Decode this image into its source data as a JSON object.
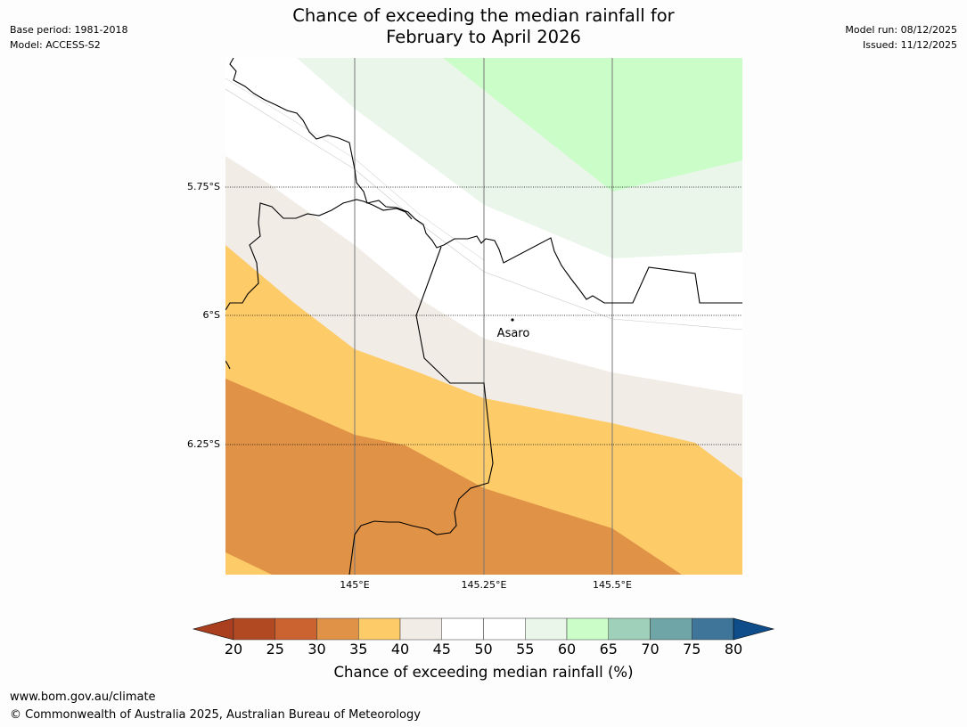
{
  "header": {
    "title_line1": "Chance of exceeding the median rainfall for",
    "title_line2": "February to April 2026",
    "base_period": "Base period: 1981-2018",
    "model": "Model: ACCESS-S2",
    "model_run": "Model run: 08/12/2025",
    "issued": "Issued: 11/12/2025"
  },
  "map": {
    "lat_labels": [
      "5.75°S",
      "6°S",
      "6.25°S"
    ],
    "lon_labels": [
      "145°E",
      "145.25°E",
      "145.5°E"
    ],
    "place": "Asaro"
  },
  "colorbar": {
    "ticks": [
      "20",
      "25",
      "30",
      "35",
      "40",
      "45",
      "50",
      "55",
      "60",
      "65",
      "70",
      "75",
      "80"
    ],
    "colors": [
      "#a93f1f",
      "#b14a23",
      "#cb6330",
      "#e09347",
      "#fecb69",
      "#f1ece6",
      "#ffffff",
      "#ffffff",
      "#eaf6ea",
      "#cbfdc9",
      "#9fd0b9",
      "#6fa5a6",
      "#3f7599",
      "#0f4d8a"
    ],
    "title": "Chance of exceeding median rainfall (%)"
  },
  "footer": {
    "url": "www.bom.gov.au/climate",
    "copyright": "© Commonwealth of Australia 2025, Australian Bureau of Meteorology"
  }
}
